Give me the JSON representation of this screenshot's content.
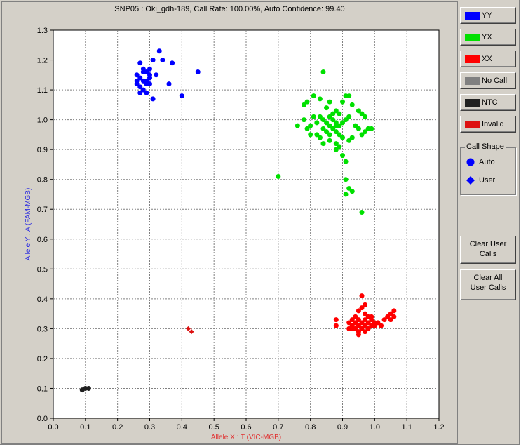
{
  "title": "SNP05 : Oki_gdh-189, Call Rate: 100.00%, Auto Confidence: 99.40",
  "legend": [
    {
      "label": "YY",
      "color": "#0000ff"
    },
    {
      "label": "YX",
      "color": "#00e000"
    },
    {
      "label": "XX",
      "color": "#ff0000"
    },
    {
      "label": "No Call",
      "color": "#808080"
    },
    {
      "label": "NTC",
      "color": "#202020"
    },
    {
      "label": "Invalid",
      "color": "#dd1111"
    }
  ],
  "call_shape": {
    "title": "Call Shape",
    "items": [
      {
        "label": "Auto",
        "icon": "circle-icon"
      },
      {
        "label": "User",
        "icon": "diamond-icon"
      }
    ]
  },
  "buttons": {
    "clear_user": [
      "Clear User",
      "Calls"
    ],
    "clear_all": [
      "Clear All",
      "User Calls"
    ]
  },
  "chart_data": {
    "type": "scatter",
    "title": "SNP05 : Oki_gdh-189, Call Rate: 100.00%, Auto Confidence: 99.40",
    "xlabel": "Allele X : T (VIC-MGB)",
    "ylabel": "Allele Y : A (FAM-MGB)",
    "xlim": [
      0.0,
      1.2
    ],
    "ylim": [
      0.0,
      1.3
    ],
    "x_ticks": [
      "0.0",
      "0.1",
      "0.2",
      "0.3",
      "0.4",
      "0.5",
      "0.6",
      "0.7",
      "0.8",
      "0.9",
      "1.0",
      "1.1",
      "1.2"
    ],
    "y_ticks": [
      "0.0",
      "0.1",
      "0.2",
      "0.3",
      "0.4",
      "0.5",
      "0.6",
      "0.7",
      "0.8",
      "0.9",
      "1.0",
      "1.1",
      "1.2",
      "1.3"
    ],
    "grid": true,
    "series": [
      {
        "name": "YY",
        "color": "#0000ff",
        "shape": "circle",
        "points": [
          [
            0.27,
            1.19
          ],
          [
            0.28,
            1.17
          ],
          [
            0.29,
            1.16
          ],
          [
            0.3,
            1.17
          ],
          [
            0.26,
            1.15
          ],
          [
            0.27,
            1.14
          ],
          [
            0.28,
            1.13
          ],
          [
            0.29,
            1.12
          ],
          [
            0.3,
            1.14
          ],
          [
            0.31,
            1.2
          ],
          [
            0.33,
            1.23
          ],
          [
            0.34,
            1.2
          ],
          [
            0.32,
            1.15
          ],
          [
            0.26,
            1.12
          ],
          [
            0.27,
            1.11
          ],
          [
            0.28,
            1.1
          ],
          [
            0.29,
            1.13
          ],
          [
            0.3,
            1.12
          ],
          [
            0.31,
            1.07
          ],
          [
            0.37,
            1.19
          ],
          [
            0.36,
            1.12
          ],
          [
            0.4,
            1.08
          ],
          [
            0.45,
            1.16
          ],
          [
            0.27,
            1.09
          ],
          [
            0.29,
            1.09
          ],
          [
            0.28,
            1.16
          ],
          [
            0.3,
            1.15
          ],
          [
            0.26,
            1.13
          ]
        ]
      },
      {
        "name": "YX",
        "color": "#00e000",
        "shape": "circle",
        "points": [
          [
            0.84,
            1.16
          ],
          [
            0.81,
            1.08
          ],
          [
            0.79,
            1.06
          ],
          [
            0.78,
            1.05
          ],
          [
            0.83,
            1.07
          ],
          [
            0.86,
            1.06
          ],
          [
            0.85,
            1.04
          ],
          [
            0.88,
            1.03
          ],
          [
            0.9,
            1.06
          ],
          [
            0.91,
            1.08
          ],
          [
            0.92,
            1.08
          ],
          [
            0.93,
            1.05
          ],
          [
            0.95,
            1.03
          ],
          [
            0.96,
            1.02
          ],
          [
            0.97,
            1.01
          ],
          [
            0.81,
            1.01
          ],
          [
            0.82,
            0.99
          ],
          [
            0.8,
            0.98
          ],
          [
            0.79,
            0.97
          ],
          [
            0.78,
            1.0
          ],
          [
            0.83,
            1.01
          ],
          [
            0.84,
            1.0
          ],
          [
            0.85,
            0.99
          ],
          [
            0.86,
            1.01
          ],
          [
            0.87,
            1.0
          ],
          [
            0.88,
            0.99
          ],
          [
            0.89,
            0.98
          ],
          [
            0.9,
            0.99
          ],
          [
            0.91,
            1.0
          ],
          [
            0.92,
            1.01
          ],
          [
            0.84,
            0.97
          ],
          [
            0.85,
            0.96
          ],
          [
            0.86,
            0.95
          ],
          [
            0.87,
            0.97
          ],
          [
            0.88,
            0.96
          ],
          [
            0.89,
            0.95
          ],
          [
            0.9,
            0.94
          ],
          [
            0.82,
            0.95
          ],
          [
            0.83,
            0.94
          ],
          [
            0.84,
            0.92
          ],
          [
            0.86,
            0.93
          ],
          [
            0.88,
            0.92
          ],
          [
            0.89,
            0.91
          ],
          [
            0.88,
            0.9
          ],
          [
            0.9,
            0.88
          ],
          [
            0.92,
            0.93
          ],
          [
            0.93,
            0.94
          ],
          [
            0.91,
            0.86
          ],
          [
            0.94,
            0.98
          ],
          [
            0.95,
            0.97
          ],
          [
            0.97,
            0.96
          ],
          [
            0.98,
            0.97
          ],
          [
            0.99,
            0.97
          ],
          [
            0.96,
            0.95
          ],
          [
            0.87,
            1.02
          ],
          [
            0.89,
            1.02
          ],
          [
            0.8,
            0.95
          ],
          [
            0.76,
            0.98
          ],
          [
            0.86,
            0.98
          ],
          [
            0.88,
            0.98
          ],
          [
            0.7,
            0.81
          ],
          [
            0.91,
            0.8
          ],
          [
            0.91,
            0.75
          ],
          [
            0.92,
            0.77
          ],
          [
            0.93,
            0.76
          ],
          [
            0.96,
            0.69
          ]
        ]
      },
      {
        "name": "XX",
        "color": "#ff0000",
        "shape": "circle",
        "points": [
          [
            0.96,
            0.41
          ],
          [
            0.97,
            0.38
          ],
          [
            0.96,
            0.37
          ],
          [
            0.95,
            0.36
          ],
          [
            0.97,
            0.35
          ],
          [
            0.98,
            0.34
          ],
          [
            0.99,
            0.34
          ],
          [
            0.94,
            0.34
          ],
          [
            0.93,
            0.33
          ],
          [
            0.95,
            0.33
          ],
          [
            0.96,
            0.32
          ],
          [
            0.97,
            0.33
          ],
          [
            0.98,
            0.32
          ],
          [
            0.99,
            0.33
          ],
          [
            1.0,
            0.32
          ],
          [
            0.92,
            0.32
          ],
          [
            0.93,
            0.31
          ],
          [
            0.94,
            0.32
          ],
          [
            0.95,
            0.31
          ],
          [
            0.96,
            0.3
          ],
          [
            0.97,
            0.31
          ],
          [
            0.98,
            0.3
          ],
          [
            0.99,
            0.31
          ],
          [
            1.0,
            0.31
          ],
          [
            1.01,
            0.32
          ],
          [
            0.94,
            0.3
          ],
          [
            0.95,
            0.29
          ],
          [
            0.96,
            0.3
          ],
          [
            0.93,
            0.3
          ],
          [
            0.92,
            0.3
          ],
          [
            0.88,
            0.33
          ],
          [
            0.88,
            0.31
          ],
          [
            1.02,
            0.31
          ],
          [
            1.03,
            0.33
          ],
          [
            1.04,
            0.34
          ],
          [
            1.05,
            0.35
          ],
          [
            1.06,
            0.34
          ],
          [
            1.06,
            0.36
          ],
          [
            1.05,
            0.33
          ],
          [
            0.97,
            0.29
          ],
          [
            0.95,
            0.28
          ]
        ]
      },
      {
        "name": "NTC",
        "color": "#202020",
        "shape": "circle",
        "points": [
          [
            0.1,
            0.1
          ],
          [
            0.11,
            0.1
          ],
          [
            0.09,
            0.095
          ]
        ]
      },
      {
        "name": "Invalid",
        "color": "#dd1111",
        "shape": "diamond",
        "points": [
          [
            0.42,
            0.3
          ],
          [
            0.43,
            0.29
          ]
        ]
      }
    ]
  }
}
